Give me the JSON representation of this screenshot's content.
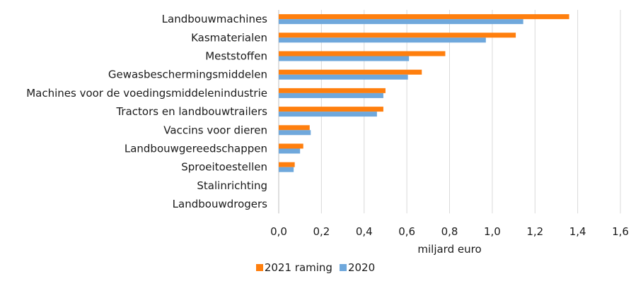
{
  "chart_data": {
    "type": "bar",
    "orientation": "horizontal",
    "categories": [
      "Landbouwmachines",
      "Kasmaterialen",
      "Meststoffen",
      "Gewasbeschermingsmiddelen",
      "Machines voor de voedingsmiddelenindustrie",
      "Tractors en landbouwtrailers",
      "Vaccins voor dieren",
      "Landbouwgereedschappen",
      "Sproeitoestellen",
      "Stalinrichting",
      "Landbouwdrogers"
    ],
    "series": [
      {
        "name": "2021 raming",
        "color": "#ff7f0e",
        "values": [
          1.36,
          1.11,
          0.78,
          0.67,
          0.5,
          0.49,
          0.145,
          0.115,
          0.075,
          0.0,
          0.0
        ]
      },
      {
        "name": "2020",
        "color": "#6fa8dc",
        "values": [
          1.145,
          0.97,
          0.61,
          0.605,
          0.49,
          0.46,
          0.15,
          0.1,
          0.07,
          0.0,
          0.0
        ]
      }
    ],
    "xlabel": "miljard euro",
    "xlim": [
      0,
      1.6
    ],
    "xticks": [
      "0,0",
      "0,2",
      "0,4",
      "0,6",
      "0,8",
      "1,0",
      "1,2",
      "1,4",
      "1,6"
    ],
    "grid": "vertical",
    "legend": "bottom"
  }
}
